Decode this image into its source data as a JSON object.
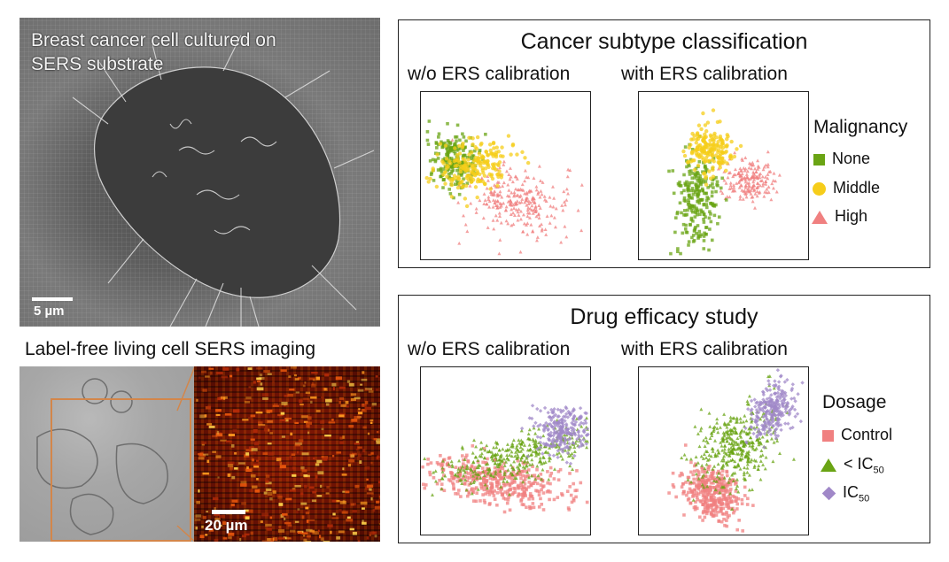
{
  "sem": {
    "caption_line1": "Breast cancer cell cultured on",
    "caption_line2": "SERS substrate",
    "scale_label": "5 µm"
  },
  "sers_imaging": {
    "title": "Label-free living cell SERS imaging",
    "scale_label": "20 µm",
    "roi_color": "#d3864a"
  },
  "classification": {
    "title": "Cancer subtype classification",
    "left_subtitle": "w/o ERS calibration",
    "right_subtitle": "with ERS calibration",
    "legend_title": "Malignancy",
    "legend": [
      {
        "label": "None",
        "symbol": "square",
        "color": "#6aa414"
      },
      {
        "label": "Middle",
        "symbol": "circle",
        "color": "#f6cd1a"
      },
      {
        "label": "High",
        "symbol": "triangle",
        "color": "#f08080"
      }
    ]
  },
  "drug": {
    "title": "Drug efficacy study",
    "left_subtitle": "w/o ERS calibration",
    "right_subtitle": "with ERS calibration",
    "legend_title": "Dosage",
    "legend": [
      {
        "label": "Control",
        "symbol": "square",
        "color": "#f08080"
      },
      {
        "label": "< IC",
        "sub": "50",
        "symbol": "triangle",
        "color": "#6aa414"
      },
      {
        "label": "IC",
        "sub": "50",
        "symbol": "diamond",
        "color": "#a088c8"
      }
    ]
  }
}
